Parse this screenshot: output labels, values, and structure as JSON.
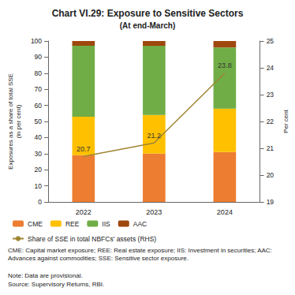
{
  "chart_data": {
    "type": "bar",
    "title": "Chart VI.29: Exposure to Sensitive Sectors",
    "subtitle": "(At end-March)",
    "y_label": "Exposures as a share of total SSE (in per cent)",
    "y2_label": "Per cent",
    "stacked": true,
    "grid": false,
    "legend": "bottom",
    "categories": [
      "2022",
      "2023",
      "2024"
    ],
    "ylim": [
      0,
      100
    ],
    "yticks": [
      0,
      10,
      20,
      30,
      40,
      50,
      60,
      70,
      80,
      90,
      100
    ],
    "y2lim": [
      19,
      25
    ],
    "y2ticks": [
      19,
      20,
      21,
      22,
      23,
      24,
      25
    ],
    "series": [
      {
        "name": "CME",
        "type": "bar",
        "color": "#ED7D31",
        "values": [
          29,
          30,
          31
        ]
      },
      {
        "name": "REE",
        "type": "bar",
        "color": "#FFC000",
        "values": [
          24,
          24,
          27
        ]
      },
      {
        "name": "IIS",
        "type": "bar",
        "color": "#70AD47",
        "values": [
          44,
          43,
          38
        ]
      },
      {
        "name": "AAC",
        "type": "bar",
        "color": "#9E480E",
        "values": [
          3,
          3,
          4
        ]
      },
      {
        "name": "Share of SSE in total NBFCs' assets (RHS)",
        "type": "line",
        "axis": "y2",
        "color": "#A08532",
        "data_labels": true,
        "values": [
          20.7,
          21.2,
          23.8
        ]
      }
    ],
    "footnotes": [
      "CME: Capital market exposure; REE: Real estate exposure; IIS: Investment in securities; AAC: Advances against commodities; SSE: Sensitive sector exposure.",
      "Note: Data are provisional.",
      "Source: Supervisory Returns, RBI."
    ]
  }
}
